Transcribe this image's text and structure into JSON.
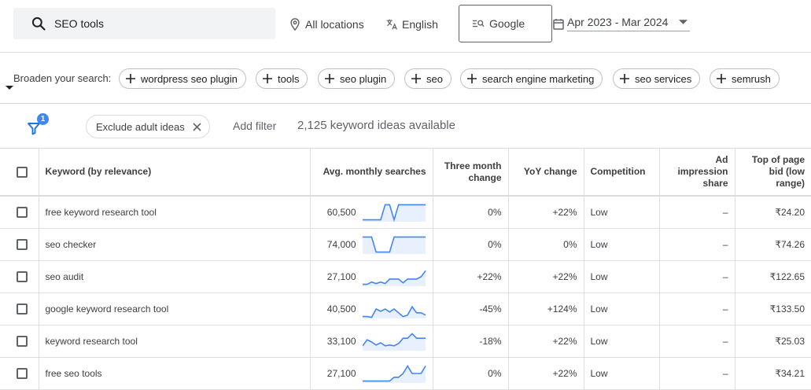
{
  "search": {
    "query": "SEO tools"
  },
  "top": {
    "locations": "All locations",
    "language": "English",
    "engine": "Google",
    "date_range": "Apr 2023 - Mar 2024"
  },
  "broaden": {
    "label": "Broaden your search:",
    "chips": [
      "wordpress seo plugin",
      "tools",
      "seo plugin",
      "seo",
      "search engine marketing",
      "seo services",
      "semrush"
    ]
  },
  "filters": {
    "badge_count": "1",
    "exclude_chip": "Exclude adult ideas",
    "add_filter": "Add filter",
    "ideas_available": "2,125 keyword ideas available"
  },
  "table": {
    "headers": {
      "keyword": "Keyword (by relevance)",
      "avg": "Avg. monthly searches",
      "three_month": "Three month change",
      "yoy": "YoY change",
      "competition": "Competition",
      "ad_share": "Ad impression share",
      "top_bid": "Top of page bid (low range)"
    },
    "rows": [
      {
        "keyword": "free keyword research tool",
        "avg": "60,500",
        "three_month": "0%",
        "yoy": "+22%",
        "competition": "Low",
        "ad_share": "–",
        "top_bid": "₹24.20",
        "trend": [
          1,
          1,
          1,
          1,
          1,
          5,
          5,
          1,
          5,
          5,
          5,
          5,
          5,
          5,
          5
        ]
      },
      {
        "keyword": "seo checker",
        "avg": "74,000",
        "three_month": "0%",
        "yoy": "0%",
        "competition": "Low",
        "ad_share": "–",
        "top_bid": "₹74.26",
        "trend": [
          5,
          5,
          5,
          1,
          1,
          1,
          1,
          5,
          5,
          5,
          5,
          5,
          5,
          5,
          5
        ]
      },
      {
        "keyword": "seo audit",
        "avg": "27,100",
        "three_month": "+22%",
        "yoy": "+22%",
        "competition": "Low",
        "ad_share": "–",
        "top_bid": "₹122.65",
        "trend": [
          1,
          1,
          1.6,
          1.2,
          1.6,
          1.2,
          2.4,
          2.4,
          2.4,
          1.4,
          2.4,
          2.4,
          2.4,
          3,
          4.6
        ]
      },
      {
        "keyword": "google keyword research tool",
        "avg": "40,500",
        "three_month": "-45%",
        "yoy": "+124%",
        "competition": "Low",
        "ad_share": "–",
        "top_bid": "₹133.50",
        "trend": [
          1,
          1,
          0.8,
          3,
          2.4,
          3,
          2.2,
          3,
          2,
          1,
          1.4,
          3.6,
          2,
          2,
          1.4
        ]
      },
      {
        "keyword": "keyword research tool",
        "avg": "33,100",
        "three_month": "-18%",
        "yoy": "+22%",
        "competition": "Low",
        "ad_share": "–",
        "top_bid": "₹25.03",
        "trend": [
          1.8,
          3.4,
          2.8,
          2,
          2.6,
          1.8,
          2,
          1.8,
          2.4,
          3.8,
          3.8,
          5,
          3.8,
          3.8,
          3.8
        ]
      },
      {
        "keyword": "free seo tools",
        "avg": "27,100",
        "three_month": "0%",
        "yoy": "+22%",
        "competition": "Low",
        "ad_share": "–",
        "top_bid": "₹34.21",
        "trend": [
          1,
          1,
          1,
          1,
          1,
          1,
          1,
          2,
          2,
          3,
          5,
          3,
          3,
          3,
          5
        ]
      }
    ]
  },
  "colors": {
    "accent": "#4285f4",
    "trend_line": "#4285f4",
    "trend_fill": "#e8f0fe"
  }
}
